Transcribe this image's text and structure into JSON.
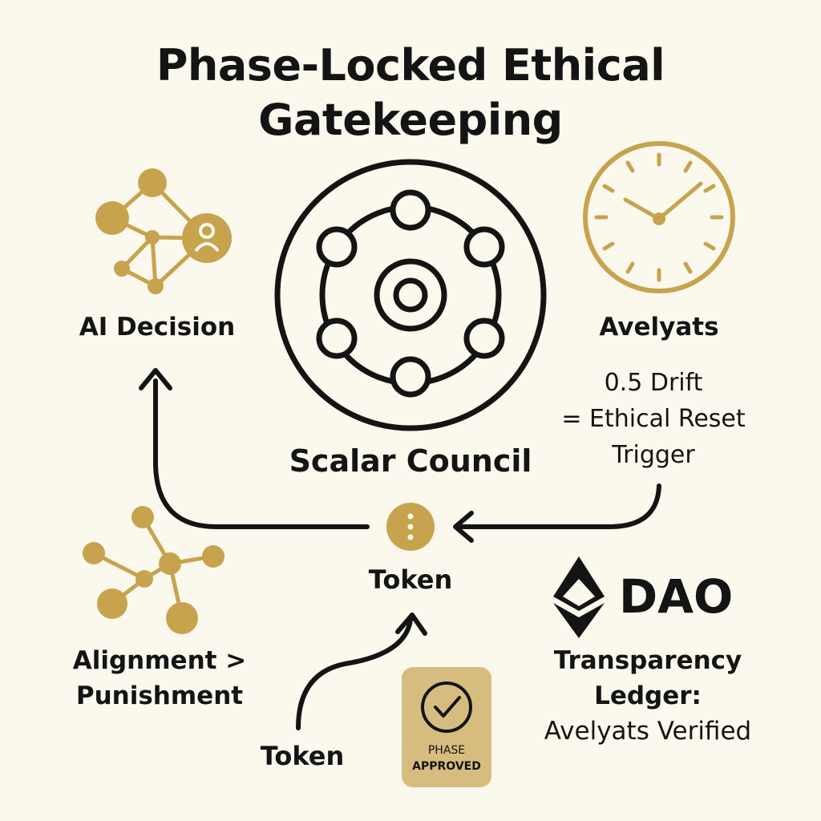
{
  "title": {
    "line1": "Phase-Locked Ethical",
    "line2": "Gatekeeping"
  },
  "colors": {
    "background": "#fbf8ee",
    "gold": "#c8a34e",
    "ink": "#141414"
  },
  "nodes": {
    "ai_decision": {
      "label": "AI Decision",
      "icon": "network-user-icon"
    },
    "scalar_council": {
      "label": "Scalar Council",
      "icon": "council-ring-icon"
    },
    "avelyats": {
      "label": "Avelyats",
      "icon": "clock-icon",
      "note_line1": "0.5 Drift",
      "note_line2": "= Ethical Reset",
      "note_line3": "Trigger"
    },
    "token_center": {
      "label": "Token",
      "icon": "token-dots-icon"
    },
    "alignment": {
      "label_line1": "Alignment >",
      "label_line2": "Punishment",
      "icon": "network-icon"
    },
    "dao": {
      "label": "DAO",
      "icon": "ethereum-diamond-icon",
      "ledger_line1": "Transparency",
      "ledger_line2": "Ledger:",
      "ledger_line3": "Avelyats Verified"
    },
    "token_bottom": {
      "label": "Token"
    },
    "phase_badge": {
      "line1": "PHASE",
      "line2": "APPROVED",
      "icon": "checkmark-icon"
    }
  }
}
